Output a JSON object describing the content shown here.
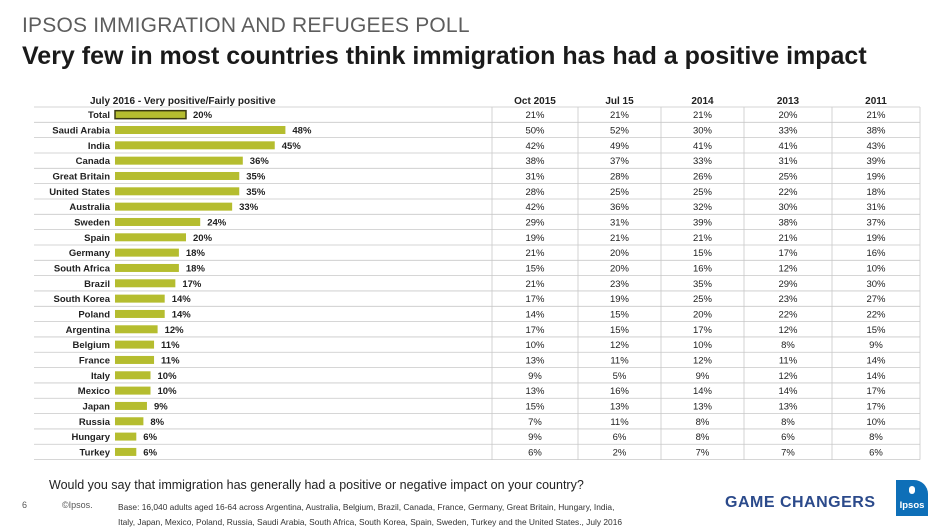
{
  "header": {
    "kicker": "IPSOS IMMIGRATION AND REFUGEES POLL",
    "title": "Very few in most countries think immigration has had a positive impact"
  },
  "chart_data": {
    "type": "bar",
    "orientation": "horizontal",
    "title": "July 2016 - Very positive/Fairly positive",
    "bar_color": "#b5bd2f",
    "highlight_color": "#3a3a10",
    "categories": [
      "Total",
      "Saudi Arabia",
      "India",
      "Canada",
      "Great Britain",
      "United States",
      "Australia",
      "Sweden",
      "Spain",
      "Germany",
      "South Africa",
      "Brazil",
      "South Korea",
      "Poland",
      "Argentina",
      "Belgium",
      "France",
      "Italy",
      "Mexico",
      "Japan",
      "Russia",
      "Hungary",
      "Turkey"
    ],
    "values": [
      20,
      48,
      45,
      36,
      35,
      35,
      33,
      24,
      20,
      18,
      18,
      17,
      14,
      14,
      12,
      11,
      11,
      10,
      10,
      9,
      8,
      6,
      6
    ],
    "value_labels": [
      "20%",
      "48%",
      "45%",
      "36%",
      "35%",
      "35%",
      "33%",
      "24%",
      "20%",
      "18%",
      "18%",
      "17%",
      "14%",
      "14%",
      "12%",
      "11%",
      "11%",
      "10%",
      "10%",
      "9%",
      "8%",
      "6%",
      "6%"
    ],
    "xlim": [
      0,
      100
    ],
    "table": {
      "columns": [
        "Oct 2015",
        "Jul 15",
        "2014",
        "2013",
        "2011"
      ],
      "rows": [
        [
          "21%",
          "21%",
          "21%",
          "20%",
          "21%"
        ],
        [
          "50%",
          "52%",
          "30%",
          "33%",
          "38%"
        ],
        [
          "42%",
          "49%",
          "41%",
          "41%",
          "43%"
        ],
        [
          "38%",
          "37%",
          "33%",
          "31%",
          "39%"
        ],
        [
          "31%",
          "28%",
          "26%",
          "25%",
          "19%"
        ],
        [
          "28%",
          "25%",
          "25%",
          "22%",
          "18%"
        ],
        [
          "42%",
          "36%",
          "32%",
          "30%",
          "31%"
        ],
        [
          "29%",
          "31%",
          "39%",
          "38%",
          "37%"
        ],
        [
          "19%",
          "21%",
          "21%",
          "21%",
          "19%"
        ],
        [
          "21%",
          "20%",
          "15%",
          "17%",
          "16%"
        ],
        [
          "15%",
          "20%",
          "16%",
          "12%",
          "10%"
        ],
        [
          "21%",
          "23%",
          "35%",
          "29%",
          "30%"
        ],
        [
          "17%",
          "19%",
          "25%",
          "23%",
          "27%"
        ],
        [
          "14%",
          "15%",
          "20%",
          "22%",
          "22%"
        ],
        [
          "17%",
          "15%",
          "17%",
          "12%",
          "15%"
        ],
        [
          "10%",
          "12%",
          "10%",
          "8%",
          "9%"
        ],
        [
          "13%",
          "11%",
          "12%",
          "11%",
          "14%"
        ],
        [
          "9%",
          "5%",
          "9%",
          "12%",
          "14%"
        ],
        [
          "13%",
          "16%",
          "14%",
          "14%",
          "17%"
        ],
        [
          "15%",
          "13%",
          "13%",
          "13%",
          "17%"
        ],
        [
          "7%",
          "11%",
          "8%",
          "8%",
          "10%"
        ],
        [
          "9%",
          "6%",
          "8%",
          "6%",
          "8%"
        ],
        [
          "6%",
          "2%",
          "7%",
          "7%",
          "6%"
        ]
      ]
    }
  },
  "footer": {
    "question": "Would you say that immigration has generally had a positive or negative impact on your country?",
    "page_number": "6",
    "copyright": "©Ipsos.",
    "base_line1": "Base: 16,040 adults aged 16-64 across  Argentina, Australia, Belgium, Brazil, Canada, France, Germany, Great Britain, Hungary, India,",
    "base_line2": "Italy, Japan, Mexico, Poland, Russia, Saudi Arabia, South Africa, South Korea, Spain, Sweden, Turkey and the United States., July 2016",
    "tagline": "GAME CHANGERS",
    "logo_text": "Ipsos"
  }
}
